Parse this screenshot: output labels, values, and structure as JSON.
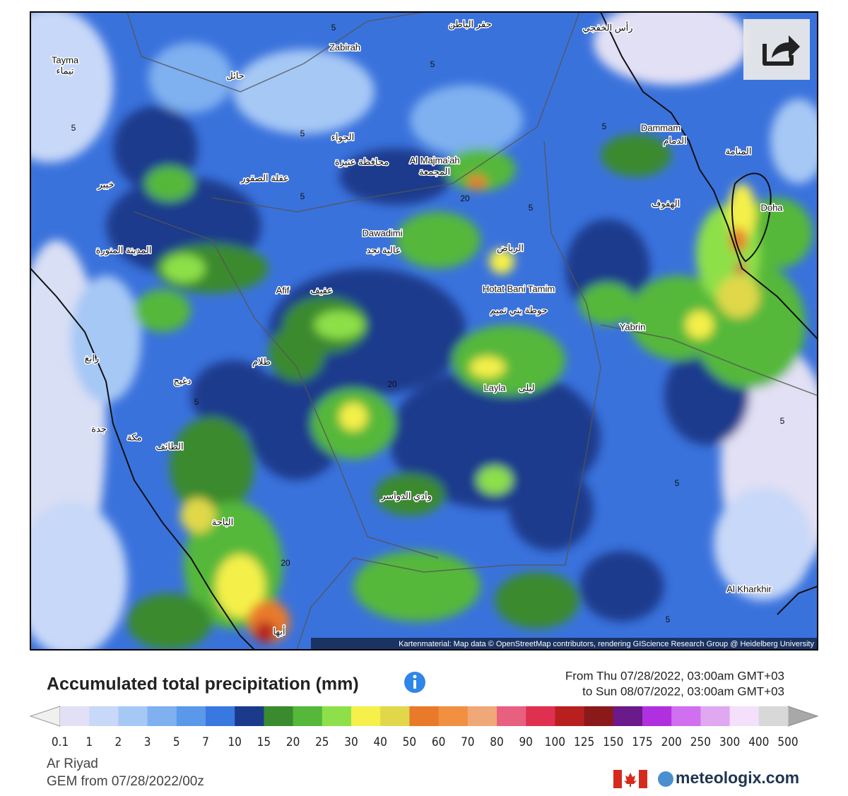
{
  "map": {
    "places": [
      "Zabirah",
      "حفر الباطن",
      "رأس الخفجي",
      "Tayma",
      "تيماء",
      "حائل",
      "Dammam",
      "الدمام",
      "المنامة",
      "الجواء",
      "محافظة عنيزة",
      "Al Majma'ah",
      "المجمعة",
      "عقلة الصقور",
      "خيبر",
      "الهفوف",
      "Doha",
      "Dawadimi",
      "عالية نجد",
      "الرياض",
      "المدينة المنورة",
      "Hotat Bani Tamim",
      "حوطة بني تميم",
      "Afif",
      "عفيف",
      "Yabrin",
      "طلام",
      "رابغ",
      "دغيج",
      "Layla",
      "ليلى",
      "جدة",
      "مكة",
      "الطائف",
      "وادي الدواسر",
      "الباحة",
      "Al Kharkhir",
      "أبها"
    ],
    "contour_labels": [
      5,
      5,
      5,
      5,
      5,
      5,
      5,
      5,
      5,
      5,
      5,
      20,
      20,
      20
    ],
    "attribution": "Kartenmaterial: Map data © OpenStreetMap contributors, rendering GIScience Research Group @ Heidelberg University"
  },
  "legend": {
    "title": "Accumulated total precipitation (mm)",
    "period": [
      "From Thu 07/28/2022, 03:00am GMT+03",
      "to Sun 08/07/2022, 03:00am GMT+03"
    ],
    "ticks": [
      0.1,
      1,
      2,
      3,
      5,
      7,
      10,
      15,
      20,
      25,
      30,
      40,
      50,
      60,
      70,
      80,
      90,
      100,
      125,
      150,
      175,
      200,
      250,
      300,
      400,
      500
    ],
    "colors": [
      "#e2e0f4",
      "#c8d8f8",
      "#a6c8f5",
      "#7fb0f0",
      "#5a98ea",
      "#3878e0",
      "#1b3a8c",
      "#3a8a2e",
      "#55b83a",
      "#8ee04a",
      "#f5f04a",
      "#e0d84a",
      "#e87a2a",
      "#f09040",
      "#f0a878",
      "#e86080",
      "#e03050",
      "#b82020",
      "#8a1a1a",
      "#6a1a8a",
      "#b030e0",
      "#d070f0",
      "#e0a8f0",
      "#f4e0fa",
      "#d8d8d8"
    ]
  },
  "footer": {
    "location": "Ar Riyad",
    "model": "GEM from 07/28/2022/00z",
    "brand": "meteologix.com"
  }
}
